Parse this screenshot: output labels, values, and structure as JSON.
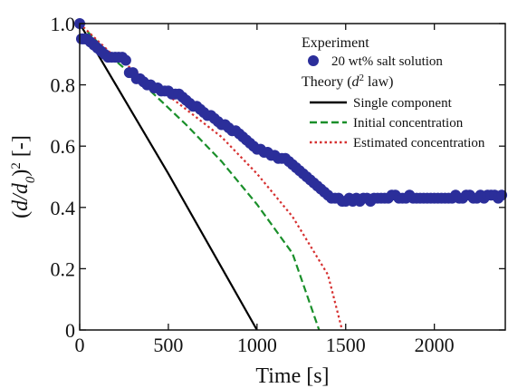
{
  "chart_data": {
    "type": "scatter",
    "title": "",
    "xlabel": "Time [s]",
    "ylabel_parts": {
      "open": "(",
      "d": "d",
      "slash": "/",
      "d0": "d",
      "d0_sub": "0",
      "close": ")",
      "sup": "2",
      "unit": " [-]"
    },
    "xlim": [
      0,
      2400
    ],
    "ylim": [
      0,
      1.0
    ],
    "x_ticks": [
      0,
      500,
      1000,
      1500,
      2000
    ],
    "y_ticks": [
      0,
      0.2,
      0.4,
      0.6,
      0.8,
      1.0
    ],
    "x_tick_labels": [
      "0",
      "500",
      "1000",
      "1500",
      "2000"
    ],
    "y_tick_labels": [
      "0",
      "0.2",
      "0.4",
      "0.6",
      "0.8",
      "1.0"
    ],
    "grid": false,
    "legend_placement": "top-right",
    "legend": {
      "experiment_heading": "Experiment",
      "theory_heading_prefix": "Theory (",
      "theory_heading_d": "d",
      "theory_heading_sup": "2",
      "theory_heading_suffix": " law)"
    },
    "series": [
      {
        "name": "20 wt% salt solution",
        "kind": "scatter",
        "color": "#2b2e9a",
        "points": [
          [
            0,
            1.0
          ],
          [
            10,
            0.95
          ],
          [
            20,
            0.95
          ],
          [
            30,
            0.95
          ],
          [
            40,
            0.95
          ],
          [
            60,
            0.94
          ],
          [
            80,
            0.93
          ],
          [
            100,
            0.92
          ],
          [
            120,
            0.91
          ],
          [
            140,
            0.9
          ],
          [
            160,
            0.89
          ],
          [
            180,
            0.89
          ],
          [
            200,
            0.89
          ],
          [
            220,
            0.89
          ],
          [
            240,
            0.89
          ],
          [
            260,
            0.88
          ],
          [
            280,
            0.84
          ],
          [
            300,
            0.84
          ],
          [
            320,
            0.82
          ],
          [
            340,
            0.82
          ],
          [
            360,
            0.81
          ],
          [
            380,
            0.8
          ],
          [
            400,
            0.8
          ],
          [
            420,
            0.79
          ],
          [
            440,
            0.79
          ],
          [
            460,
            0.78
          ],
          [
            480,
            0.78
          ],
          [
            500,
            0.78
          ],
          [
            520,
            0.77
          ],
          [
            540,
            0.77
          ],
          [
            560,
            0.77
          ],
          [
            580,
            0.76
          ],
          [
            600,
            0.75
          ],
          [
            620,
            0.74
          ],
          [
            640,
            0.73
          ],
          [
            660,
            0.73
          ],
          [
            680,
            0.72
          ],
          [
            700,
            0.71
          ],
          [
            720,
            0.7
          ],
          [
            740,
            0.7
          ],
          [
            760,
            0.69
          ],
          [
            780,
            0.68
          ],
          [
            800,
            0.67
          ],
          [
            820,
            0.67
          ],
          [
            840,
            0.66
          ],
          [
            860,
            0.65
          ],
          [
            880,
            0.65
          ],
          [
            900,
            0.64
          ],
          [
            920,
            0.63
          ],
          [
            940,
            0.62
          ],
          [
            960,
            0.61
          ],
          [
            980,
            0.6
          ],
          [
            1000,
            0.59
          ],
          [
            1020,
            0.59
          ],
          [
            1040,
            0.58
          ],
          [
            1060,
            0.58
          ],
          [
            1080,
            0.57
          ],
          [
            1100,
            0.57
          ],
          [
            1120,
            0.56
          ],
          [
            1140,
            0.56
          ],
          [
            1160,
            0.56
          ],
          [
            1180,
            0.55
          ],
          [
            1200,
            0.54
          ],
          [
            1220,
            0.53
          ],
          [
            1240,
            0.52
          ],
          [
            1260,
            0.51
          ],
          [
            1280,
            0.5
          ],
          [
            1300,
            0.49
          ],
          [
            1320,
            0.48
          ],
          [
            1340,
            0.47
          ],
          [
            1360,
            0.46
          ],
          [
            1380,
            0.45
          ],
          [
            1400,
            0.44
          ],
          [
            1420,
            0.43
          ],
          [
            1440,
            0.43
          ],
          [
            1460,
            0.43
          ],
          [
            1480,
            0.42
          ],
          [
            1500,
            0.42
          ],
          [
            1520,
            0.43
          ],
          [
            1540,
            0.42
          ],
          [
            1560,
            0.43
          ],
          [
            1580,
            0.42
          ],
          [
            1600,
            0.43
          ],
          [
            1620,
            0.43
          ],
          [
            1640,
            0.42
          ],
          [
            1660,
            0.43
          ],
          [
            1680,
            0.43
          ],
          [
            1700,
            0.43
          ],
          [
            1720,
            0.43
          ],
          [
            1740,
            0.43
          ],
          [
            1760,
            0.44
          ],
          [
            1780,
            0.44
          ],
          [
            1800,
            0.43
          ],
          [
            1820,
            0.43
          ],
          [
            1840,
            0.43
          ],
          [
            1860,
            0.44
          ],
          [
            1880,
            0.43
          ],
          [
            1900,
            0.43
          ],
          [
            1920,
            0.43
          ],
          [
            1940,
            0.43
          ],
          [
            1960,
            0.43
          ],
          [
            1980,
            0.43
          ],
          [
            2000,
            0.43
          ],
          [
            2020,
            0.43
          ],
          [
            2040,
            0.43
          ],
          [
            2060,
            0.43
          ],
          [
            2080,
            0.43
          ],
          [
            2100,
            0.43
          ],
          [
            2120,
            0.44
          ],
          [
            2140,
            0.43
          ],
          [
            2160,
            0.43
          ],
          [
            2180,
            0.44
          ],
          [
            2200,
            0.44
          ],
          [
            2220,
            0.43
          ],
          [
            2240,
            0.43
          ],
          [
            2260,
            0.44
          ],
          [
            2280,
            0.43
          ],
          [
            2300,
            0.44
          ],
          [
            2320,
            0.44
          ],
          [
            2340,
            0.44
          ],
          [
            2360,
            0.43
          ],
          [
            2380,
            0.44
          ]
        ]
      },
      {
        "name": "Single component",
        "kind": "line",
        "color": "#000000",
        "dash": "solid",
        "points": [
          [
            0,
            1.0
          ],
          [
            500,
            0.51
          ],
          [
            1000,
            0.0
          ]
        ]
      },
      {
        "name": "Initial concentration",
        "kind": "line",
        "color": "#1a8f2a",
        "dash": "dashed",
        "points": [
          [
            0,
            1.0
          ],
          [
            200,
            0.88
          ],
          [
            400,
            0.78
          ],
          [
            600,
            0.67
          ],
          [
            800,
            0.55
          ],
          [
            1000,
            0.41
          ],
          [
            1200,
            0.25
          ],
          [
            1350,
            0.0
          ]
        ]
      },
      {
        "name": "Estimated concentration",
        "kind": "line",
        "color": "#d63030",
        "dash": "dotted",
        "points": [
          [
            0,
            1.0
          ],
          [
            200,
            0.89
          ],
          [
            400,
            0.81
          ],
          [
            600,
            0.72
          ],
          [
            800,
            0.63
          ],
          [
            1000,
            0.51
          ],
          [
            1200,
            0.37
          ],
          [
            1400,
            0.18
          ],
          [
            1480,
            0.0
          ]
        ]
      }
    ]
  }
}
